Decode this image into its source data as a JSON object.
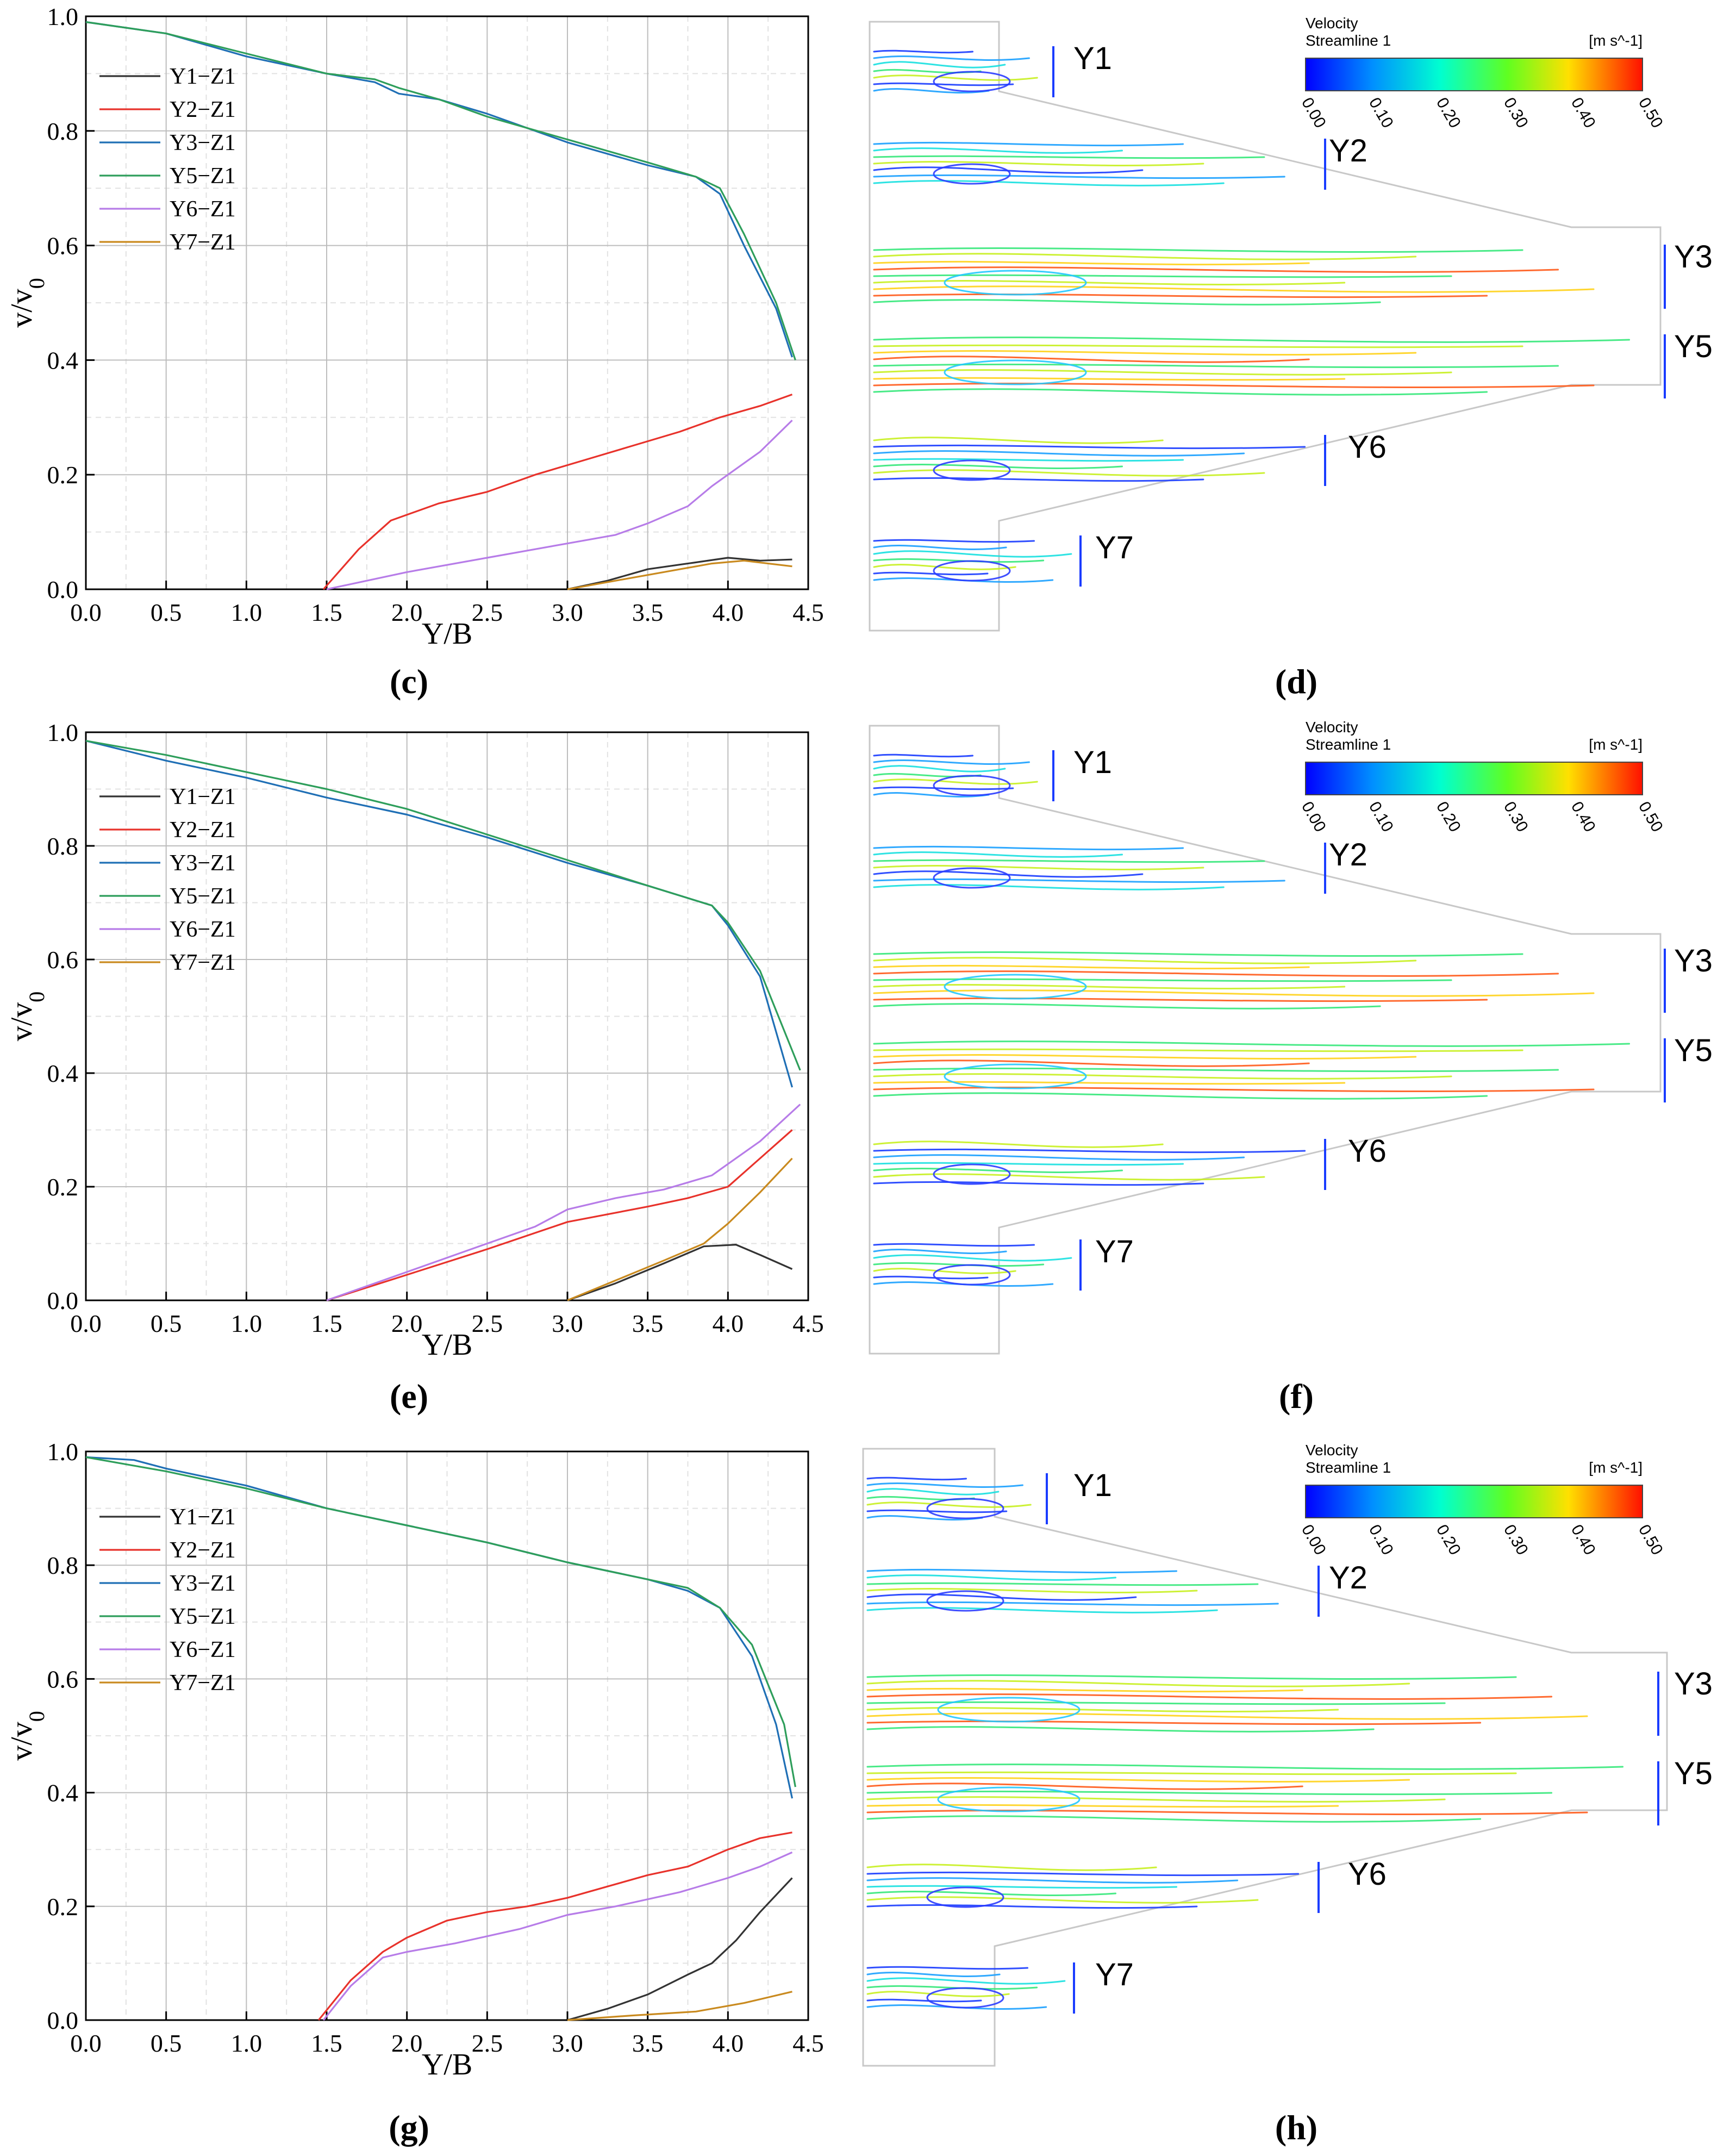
{
  "panels": [
    {
      "chart_label": "(c)",
      "streamline_label": "(d)",
      "chart_data": {
        "type": "line",
        "xlabel": "Y/B",
        "ylabel": "v/v0",
        "xlim": [
          0,
          4.5
        ],
        "ylim": [
          0,
          1.0
        ],
        "xticks": [
          "0.0",
          "0.5",
          "1.0",
          "1.5",
          "2.0",
          "2.5",
          "3.0",
          "3.5",
          "4.0",
          "4.5"
        ],
        "yticks": [
          "0.0",
          "0.2",
          "0.4",
          "0.6",
          "0.8",
          "1.0"
        ],
        "grid": true,
        "legend_position": "top-left",
        "series": [
          {
            "name": "Y1−Z1",
            "color": "#333333",
            "x": [
              3.0,
              3.25,
              3.5,
              3.75,
              4.0,
              4.2,
              4.4
            ],
            "y": [
              0.0,
              0.015,
              0.035,
              0.045,
              0.055,
              0.05,
              0.052
            ]
          },
          {
            "name": "Y2−Z1",
            "color": "#e8322b",
            "x": [
              1.48,
              1.7,
              1.9,
              2.2,
              2.5,
              2.8,
              3.1,
              3.4,
              3.7,
              3.95,
              4.2,
              4.4
            ],
            "y": [
              0.0,
              0.07,
              0.12,
              0.15,
              0.17,
              0.2,
              0.225,
              0.25,
              0.275,
              0.3,
              0.32,
              0.34
            ]
          },
          {
            "name": "Y3−Z1",
            "color": "#1f6fb5",
            "x": [
              0.0,
              0.5,
              1.0,
              1.5,
              1.8,
              1.95,
              2.2,
              2.5,
              3.0,
              3.5,
              3.8,
              3.95,
              4.1,
              4.3,
              4.4
            ],
            "y": [
              0.99,
              0.97,
              0.93,
              0.9,
              0.885,
              0.865,
              0.855,
              0.83,
              0.78,
              0.74,
              0.72,
              0.69,
              0.6,
              0.49,
              0.405
            ]
          },
          {
            "name": "Y5−Z1",
            "color": "#2e9e5b",
            "x": [
              0.0,
              0.5,
              1.0,
              1.5,
              1.8,
              1.95,
              2.2,
              2.5,
              3.0,
              3.5,
              3.8,
              3.95,
              4.1,
              4.3,
              4.42
            ],
            "y": [
              0.99,
              0.97,
              0.935,
              0.9,
              0.89,
              0.875,
              0.855,
              0.825,
              0.785,
              0.745,
              0.72,
              0.7,
              0.62,
              0.5,
              0.4
            ]
          },
          {
            "name": "Y6−Z1",
            "color": "#b77ce8",
            "x": [
              1.5,
              2.0,
              2.5,
              3.0,
              3.3,
              3.5,
              3.75,
              3.9,
              4.0,
              4.2,
              4.4
            ],
            "y": [
              0.0,
              0.03,
              0.055,
              0.08,
              0.095,
              0.115,
              0.145,
              0.18,
              0.2,
              0.24,
              0.295
            ]
          },
          {
            "name": "Y7−Z1",
            "color": "#c98a1f",
            "x": [
              3.0,
              3.3,
              3.6,
              3.9,
              4.1,
              4.4
            ],
            "y": [
              0.0,
              0.015,
              0.03,
              0.045,
              0.05,
              0.04
            ]
          }
        ]
      },
      "flow_labels": [
        "Y1",
        "Y2",
        "Y3",
        "Y5",
        "Y6",
        "Y7"
      ],
      "colorbar": {
        "title_line1": "Velocity",
        "title_line2": "Streamline 1",
        "unit": "[m s^-1]",
        "ticks": [
          "0.00",
          "0.10",
          "0.20",
          "0.30",
          "0.40",
          "0.50"
        ]
      }
    },
    {
      "chart_label": "(e)",
      "streamline_label": "(f)",
      "chart_data": {
        "type": "line",
        "xlabel": "Y/B",
        "ylabel": "v/v0",
        "xlim": [
          0,
          4.5
        ],
        "ylim": [
          0,
          1.0
        ],
        "xticks": [
          "0.0",
          "0.5",
          "1.0",
          "1.5",
          "2.0",
          "2.5",
          "3.0",
          "3.5",
          "4.0",
          "4.5"
        ],
        "yticks": [
          "0.0",
          "0.2",
          "0.4",
          "0.6",
          "0.8",
          "1.0"
        ],
        "grid": true,
        "legend_position": "top-left",
        "series": [
          {
            "name": "Y1−Z1",
            "color": "#333333",
            "x": [
              3.0,
              3.3,
              3.6,
              3.85,
              4.05,
              4.2,
              4.4
            ],
            "y": [
              0.0,
              0.03,
              0.065,
              0.095,
              0.098,
              0.08,
              0.055
            ]
          },
          {
            "name": "Y2−Z1",
            "color": "#e8322b",
            "x": [
              1.5,
              2.0,
              2.5,
              3.0,
              3.5,
              3.75,
              4.0,
              4.2,
              4.4
            ],
            "y": [
              0.0,
              0.045,
              0.09,
              0.138,
              0.165,
              0.18,
              0.2,
              0.25,
              0.3
            ]
          },
          {
            "name": "Y3−Z1",
            "color": "#1f6fb5",
            "x": [
              0.0,
              0.5,
              1.0,
              1.5,
              2.0,
              2.5,
              3.0,
              3.5,
              3.9,
              4.0,
              4.2,
              4.4
            ],
            "y": [
              0.985,
              0.95,
              0.92,
              0.885,
              0.855,
              0.815,
              0.77,
              0.73,
              0.695,
              0.66,
              0.57,
              0.375
            ]
          },
          {
            "name": "Y5−Z1",
            "color": "#2e9e5b",
            "x": [
              0.0,
              0.5,
              1.0,
              1.5,
              2.0,
              2.5,
              3.0,
              3.5,
              3.9,
              4.0,
              4.2,
              4.45
            ],
            "y": [
              0.985,
              0.96,
              0.93,
              0.9,
              0.865,
              0.82,
              0.775,
              0.73,
              0.695,
              0.665,
              0.58,
              0.405
            ]
          },
          {
            "name": "Y6−Z1",
            "color": "#b77ce8",
            "x": [
              1.5,
              2.0,
              2.5,
              2.8,
              3.0,
              3.3,
              3.6,
              3.9,
              4.0,
              4.2,
              4.45
            ],
            "y": [
              0.0,
              0.05,
              0.1,
              0.13,
              0.16,
              0.18,
              0.195,
              0.22,
              0.24,
              0.28,
              0.345
            ]
          },
          {
            "name": "Y7−Z1",
            "color": "#c98a1f",
            "x": [
              3.0,
              3.3,
              3.6,
              3.85,
              4.0,
              4.2,
              4.4
            ],
            "y": [
              0.0,
              0.035,
              0.07,
              0.1,
              0.135,
              0.19,
              0.25
            ]
          }
        ]
      },
      "flow_labels": [
        "Y1",
        "Y2",
        "Y3",
        "Y5",
        "Y6",
        "Y7"
      ],
      "colorbar": {
        "title_line1": "Velocity",
        "title_line2": "Streamline 1",
        "unit": "[m s^-1]",
        "ticks": [
          "0.00",
          "0.10",
          "0.20",
          "0.30",
          "0.40",
          "0.50"
        ]
      }
    },
    {
      "chart_label": "(g)",
      "streamline_label": "(h)",
      "chart_data": {
        "type": "line",
        "xlabel": "Y/B",
        "ylabel": "v/v0",
        "xlim": [
          0,
          4.5
        ],
        "ylim": [
          0,
          1.0
        ],
        "xticks": [
          "0.0",
          "0.5",
          "1.0",
          "1.5",
          "2.0",
          "2.5",
          "3.0",
          "3.5",
          "4.0",
          "4.5"
        ],
        "yticks": [
          "0.0",
          "0.2",
          "0.4",
          "0.6",
          "0.8",
          "1.0"
        ],
        "grid": true,
        "legend_position": "top-left",
        "series": [
          {
            "name": "Y1−Z1",
            "color": "#333333",
            "x": [
              3.0,
              3.25,
              3.5,
              3.75,
              3.9,
              4.05,
              4.2,
              4.4
            ],
            "y": [
              0.0,
              0.02,
              0.045,
              0.08,
              0.1,
              0.14,
              0.19,
              0.25
            ]
          },
          {
            "name": "Y2−Z1",
            "color": "#e8322b",
            "x": [
              1.45,
              1.65,
              1.85,
              2.0,
              2.25,
              2.5,
              2.75,
              3.0,
              3.25,
              3.5,
              3.75,
              4.0,
              4.2,
              4.4
            ],
            "y": [
              0.0,
              0.07,
              0.12,
              0.145,
              0.175,
              0.19,
              0.2,
              0.215,
              0.235,
              0.255,
              0.27,
              0.3,
              0.32,
              0.33
            ]
          },
          {
            "name": "Y3−Z1",
            "color": "#1f6fb5",
            "x": [
              0.0,
              0.3,
              0.5,
              1.0,
              1.5,
              2.0,
              2.5,
              3.0,
              3.5,
              3.75,
              3.95,
              4.15,
              4.3,
              4.4
            ],
            "y": [
              0.99,
              0.985,
              0.97,
              0.94,
              0.9,
              0.87,
              0.84,
              0.805,
              0.775,
              0.755,
              0.725,
              0.64,
              0.52,
              0.39
            ]
          },
          {
            "name": "Y5−Z1",
            "color": "#2e9e5b",
            "x": [
              0.0,
              0.3,
              0.5,
              1.0,
              1.5,
              2.0,
              2.5,
              3.0,
              3.5,
              3.75,
              3.95,
              4.15,
              4.35,
              4.42
            ],
            "y": [
              0.99,
              0.975,
              0.965,
              0.935,
              0.9,
              0.87,
              0.84,
              0.805,
              0.775,
              0.76,
              0.725,
              0.66,
              0.52,
              0.41
            ]
          },
          {
            "name": "Y6−Z1",
            "color": "#b77ce8",
            "x": [
              1.48,
              1.65,
              1.85,
              2.0,
              2.3,
              2.7,
              3.0,
              3.3,
              3.7,
              4.0,
              4.2,
              4.4
            ],
            "y": [
              0.0,
              0.06,
              0.11,
              0.12,
              0.135,
              0.16,
              0.185,
              0.2,
              0.225,
              0.25,
              0.27,
              0.295
            ]
          },
          {
            "name": "Y7−Z1",
            "color": "#c98a1f",
            "x": [
              3.0,
              3.4,
              3.8,
              4.1,
              4.4
            ],
            "y": [
              0.0,
              0.008,
              0.015,
              0.03,
              0.05
            ]
          }
        ]
      },
      "flow_labels": [
        "Y1",
        "Y2",
        "Y3",
        "Y5",
        "Y6",
        "Y7"
      ],
      "colorbar": {
        "title_line1": "Velocity",
        "title_line2": "Streamline 1",
        "unit": "[m s^-1]",
        "ticks": [
          "0.00",
          "0.10",
          "0.20",
          "0.30",
          "0.40",
          "0.50"
        ]
      }
    }
  ]
}
